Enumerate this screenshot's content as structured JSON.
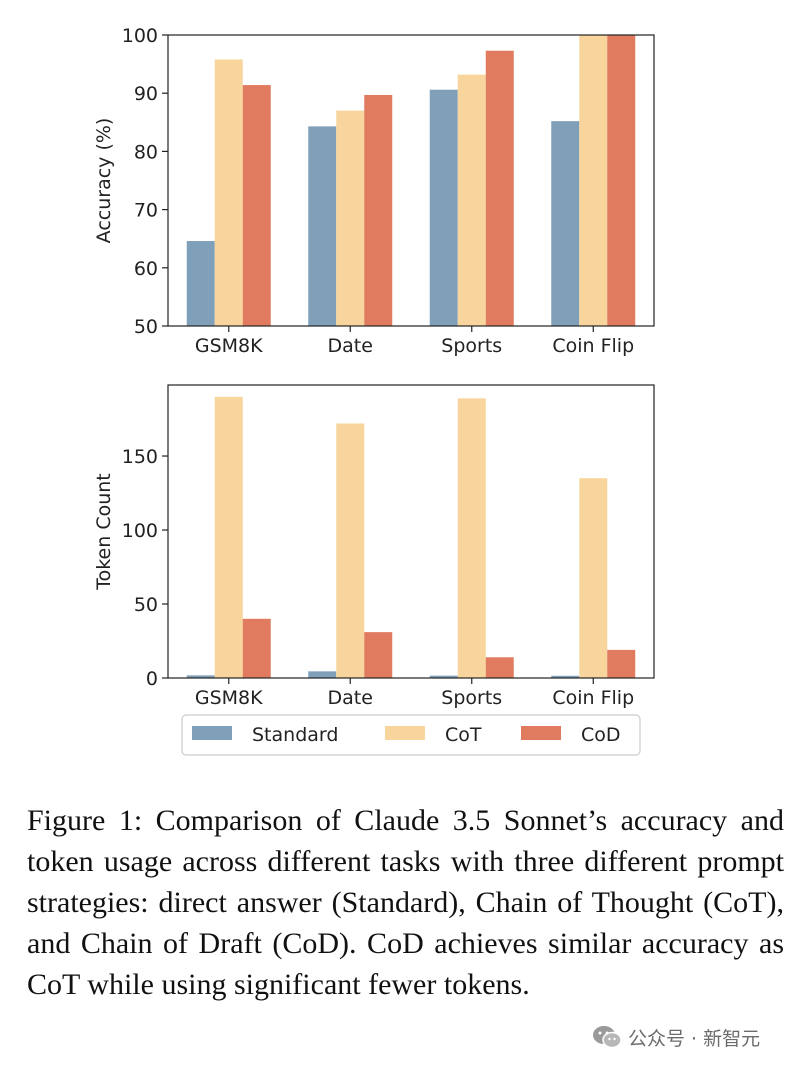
{
  "chart_data": [
    {
      "type": "bar",
      "categories": [
        "GSM8K",
        "Date",
        "Sports",
        "Coin Flip"
      ],
      "series": [
        {
          "name": "Standard",
          "values": [
            64.6,
            84.3,
            90.6,
            85.2
          ]
        },
        {
          "name": "CoT",
          "values": [
            95.8,
            87.0,
            93.2,
            100.0
          ]
        },
        {
          "name": "CoD",
          "values": [
            91.4,
            89.7,
            97.3,
            100.0
          ]
        }
      ],
      "ylabel": "Accuracy (%)",
      "xlabel": "",
      "ylim": [
        50,
        100
      ],
      "yticks": [
        50,
        60,
        70,
        80,
        90,
        100
      ],
      "grid": false
    },
    {
      "type": "bar",
      "categories": [
        "GSM8K",
        "Date",
        "Sports",
        "Coin Flip"
      ],
      "series": [
        {
          "name": "Standard",
          "values": [
            1.8,
            4.5,
            1.6,
            1.5
          ]
        },
        {
          "name": "CoT",
          "values": [
            190,
            172,
            189,
            135
          ]
        },
        {
          "name": "CoD",
          "values": [
            40,
            31,
            14,
            19
          ]
        }
      ],
      "ylabel": "Token Count",
      "xlabel": "",
      "ylim": [
        0,
        198
      ],
      "yticks": [
        0,
        50,
        100,
        150
      ],
      "grid": false
    }
  ],
  "legend": {
    "position": "bottom-center",
    "items": [
      "Standard",
      "CoT",
      "CoD"
    ]
  },
  "colors": {
    "Standard": "#80a0ba",
    "CoT": "#f7d59c",
    "CoD": "#e07b5f"
  },
  "caption": "Figure 1: Comparison of Claude 3.5 Sonnet’s accuracy and token usage across different tasks with three different prompt strategies: direct answer (Standard), Chain of Thought (CoT), and Chain of Draft (CoD). CoD achieves similar accuracy as CoT while using significant fewer tokens.",
  "watermark": {
    "text": "公众号 · 新智元",
    "icon": "wechat-icon"
  }
}
